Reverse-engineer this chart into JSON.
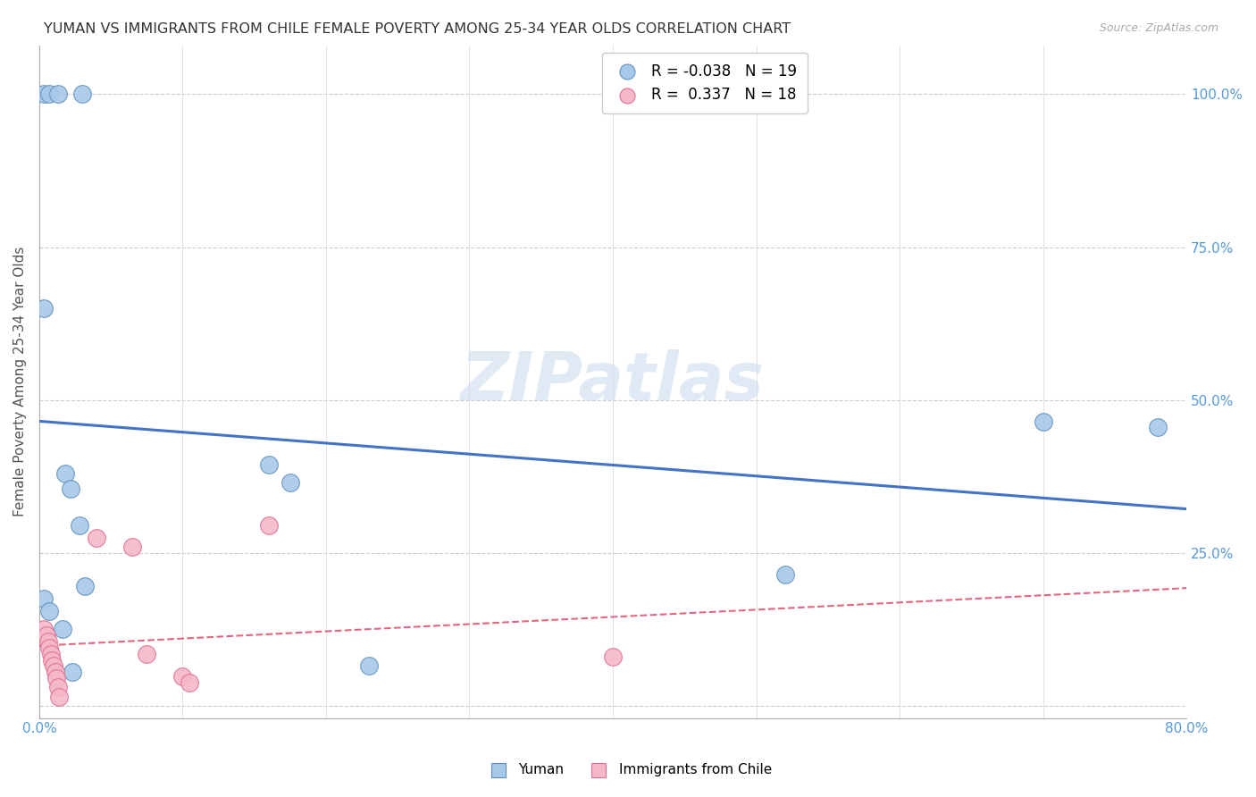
{
  "title": "YUMAN VS IMMIGRANTS FROM CHILE FEMALE POVERTY AMONG 25-34 YEAR OLDS CORRELATION CHART",
  "source": "Source: ZipAtlas.com",
  "ylabel": "Female Poverty Among 25-34 Year Olds",
  "xlim": [
    0.0,
    0.8
  ],
  "ylim": [
    -0.02,
    1.08
  ],
  "ytick_values": [
    0.0,
    0.25,
    0.5,
    0.75,
    1.0
  ],
  "xtick_values": [
    0.0,
    0.1,
    0.2,
    0.3,
    0.4,
    0.5,
    0.6,
    0.7,
    0.8
  ],
  "legend_R_yuman": "-0.038",
  "legend_N_yuman": "19",
  "legend_R_chile": "0.337",
  "legend_N_chile": "18",
  "yuman_color": "#a8c8e8",
  "chile_color": "#f5b8c8",
  "yuman_edge_color": "#6090c0",
  "chile_edge_color": "#e07090",
  "trend_yuman_color": "#4472c4",
  "trend_chile_color": "#e06880",
  "watermark": "ZIPatlas",
  "background_color": "#ffffff",
  "yuman_x": [
    0.003,
    0.007,
    0.013,
    0.03,
    0.003,
    0.018,
    0.022,
    0.028,
    0.032,
    0.003,
    0.007,
    0.016,
    0.023,
    0.16,
    0.175,
    0.23,
    0.52,
    0.7,
    0.78
  ],
  "yuman_y": [
    1.0,
    1.0,
    1.0,
    1.0,
    0.65,
    0.38,
    0.355,
    0.295,
    0.195,
    0.175,
    0.155,
    0.125,
    0.055,
    0.395,
    0.365,
    0.065,
    0.215,
    0.465,
    0.455
  ],
  "chile_x": [
    0.003,
    0.005,
    0.006,
    0.007,
    0.008,
    0.009,
    0.01,
    0.011,
    0.012,
    0.013,
    0.014,
    0.04,
    0.065,
    0.075,
    0.1,
    0.105,
    0.16,
    0.4
  ],
  "chile_y": [
    0.125,
    0.115,
    0.105,
    0.095,
    0.085,
    0.075,
    0.065,
    0.055,
    0.045,
    0.03,
    0.015,
    0.275,
    0.26,
    0.085,
    0.048,
    0.038,
    0.295,
    0.08
  ]
}
